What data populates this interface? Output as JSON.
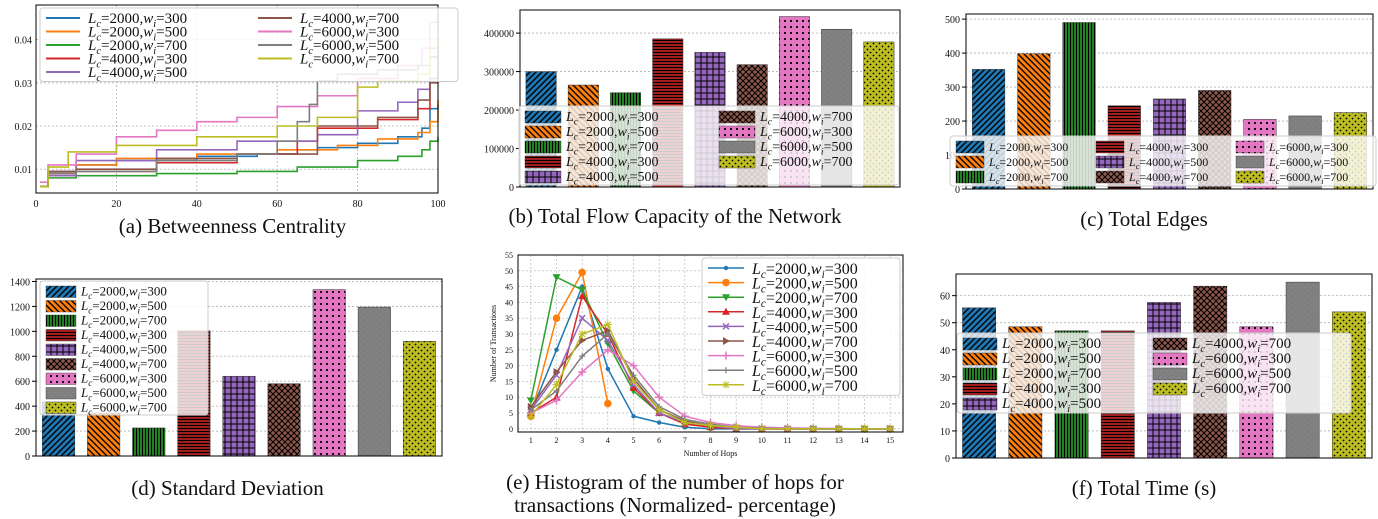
{
  "series_labels": [
    "Lc=2000,wi=300",
    "Lc=2000,wi=500",
    "Lc=2000,wi=700",
    "Lc=4000,wi=300",
    "Lc=4000,wi=500",
    "Lc=4000,wi=700",
    "Lc=6000,wi=300",
    "Lc=6000,wi=500",
    "Lc=6000,wi=700"
  ],
  "series_colors": [
    "#1f77b4",
    "#ff7f0e",
    "#2ca02c",
    "#d62728",
    "#9467bd",
    "#8c564b",
    "#e377c2",
    "#7f7f7f",
    "#bcbd22"
  ],
  "captions": {
    "a": "(a) Betweenness Centrality",
    "b": "(b) Total Flow Capacity of the Network",
    "c": "(c) Total Edges",
    "d": "(d) Standard Deviation",
    "e1": "(e) Histogram of the number of hops for",
    "e2": "transactions (Normalized- percentage)",
    "f": "(f) Total Time (s)"
  },
  "chart_data": [
    {
      "id": "a",
      "type": "line",
      "title": "(a) Betweenness Centrality",
      "xlim": [
        0,
        100
      ],
      "ylim": [
        0.0045,
        0.048
      ],
      "x_ticks": [
        0,
        20,
        40,
        60,
        80,
        100
      ],
      "y_ticks": [
        0.01,
        0.02,
        0.03,
        0.04
      ],
      "legend": "top-left, 2 columns",
      "grid": true,
      "series": [
        {
          "name": "Lc=2000,wi=300",
          "points": [
            [
              1,
              0.006
            ],
            [
              3,
              0.0095
            ],
            [
              10,
              0.011
            ],
            [
              20,
              0.012
            ],
            [
              40,
              0.013
            ],
            [
              55,
              0.0135
            ],
            [
              65,
              0.0145
            ],
            [
              70,
              0.015
            ],
            [
              80,
              0.016
            ],
            [
              90,
              0.0175
            ],
            [
              96,
              0.0195
            ],
            [
              98,
              0.024
            ],
            [
              100,
              0.025
            ]
          ]
        },
        {
          "name": "Lc=2000,wi=500",
          "points": [
            [
              1,
              0.006
            ],
            [
              3,
              0.009
            ],
            [
              10,
              0.011
            ],
            [
              20,
              0.0125
            ],
            [
              40,
              0.0135
            ],
            [
              60,
              0.0145
            ],
            [
              75,
              0.0155
            ],
            [
              85,
              0.017
            ],
            [
              95,
              0.0185
            ],
            [
              98,
              0.021
            ],
            [
              100,
              0.026
            ]
          ]
        },
        {
          "name": "Lc=2000,wi=700",
          "points": [
            [
              1,
              0.006
            ],
            [
              3,
              0.008
            ],
            [
              10,
              0.0085
            ],
            [
              30,
              0.009
            ],
            [
              50,
              0.0095
            ],
            [
              65,
              0.0105
            ],
            [
              80,
              0.012
            ],
            [
              90,
              0.013
            ],
            [
              96,
              0.0145
            ],
            [
              98,
              0.0165
            ],
            [
              100,
              0.0175
            ]
          ]
        },
        {
          "name": "Lc=4000,wi=300",
          "points": [
            [
              1,
              0.006
            ],
            [
              3,
              0.009
            ],
            [
              10,
              0.0095
            ],
            [
              30,
              0.0115
            ],
            [
              50,
              0.0135
            ],
            [
              65,
              0.0165
            ],
            [
              70,
              0.0195
            ],
            [
              85,
              0.0215
            ],
            [
              95,
              0.024
            ],
            [
              98,
              0.031
            ],
            [
              100,
              0.039
            ]
          ]
        },
        {
          "name": "Lc=4000,wi=500",
          "points": [
            [
              1,
              0.006
            ],
            [
              3,
              0.0085
            ],
            [
              10,
              0.012
            ],
            [
              30,
              0.0145
            ],
            [
              50,
              0.0165
            ],
            [
              70,
              0.018
            ],
            [
              80,
              0.0235
            ],
            [
              90,
              0.0255
            ],
            [
              95,
              0.0285
            ],
            [
              98,
              0.031
            ],
            [
              100,
              0.033
            ]
          ]
        },
        {
          "name": "Lc=4000,wi=700",
          "points": [
            [
              1,
              0.006
            ],
            [
              3,
              0.0095
            ],
            [
              10,
              0.01
            ],
            [
              30,
              0.0125
            ],
            [
              50,
              0.0135
            ],
            [
              70,
              0.02
            ],
            [
              85,
              0.022
            ],
            [
              95,
              0.026
            ],
            [
              98,
              0.03
            ],
            [
              100,
              0.033
            ]
          ]
        },
        {
          "name": "Lc=6000,wi=300",
          "points": [
            [
              1,
              0.007
            ],
            [
              3,
              0.011
            ],
            [
              10,
              0.0135
            ],
            [
              20,
              0.0175
            ],
            [
              30,
              0.019
            ],
            [
              40,
              0.021
            ],
            [
              50,
              0.022
            ],
            [
              60,
              0.0245
            ],
            [
              70,
              0.027
            ],
            [
              80,
              0.031
            ],
            [
              90,
              0.034
            ],
            [
              96,
              0.038
            ],
            [
              98,
              0.044
            ],
            [
              100,
              0.046
            ]
          ]
        },
        {
          "name": "Lc=6000,wi=500",
          "points": [
            [
              1,
              0.006
            ],
            [
              3,
              0.009
            ],
            [
              10,
              0.0095
            ],
            [
              30,
              0.012
            ],
            [
              50,
              0.0135
            ],
            [
              60,
              0.0165
            ],
            [
              65,
              0.021
            ],
            [
              68,
              0.025
            ],
            [
              70,
              0.0305
            ],
            [
              75,
              0.032
            ],
            [
              85,
              0.033
            ],
            [
              95,
              0.034
            ],
            [
              98,
              0.036
            ],
            [
              100,
              0.047
            ]
          ]
        },
        {
          "name": "Lc=6000,wi=700",
          "points": [
            [
              1,
              0.006
            ],
            [
              3,
              0.0105
            ],
            [
              8,
              0.014
            ],
            [
              20,
              0.0155
            ],
            [
              40,
              0.0175
            ],
            [
              60,
              0.02
            ],
            [
              70,
              0.022
            ],
            [
              80,
              0.029
            ],
            [
              85,
              0.0305
            ],
            [
              95,
              0.032
            ],
            [
              98,
              0.038
            ],
            [
              100,
              0.042
            ]
          ]
        }
      ]
    },
    {
      "id": "b",
      "type": "bar",
      "title": "(b) Total Flow Capacity of the Network",
      "ylim": [
        0,
        460000
      ],
      "y_ticks": [
        0,
        100000,
        200000,
        300000,
        400000
      ],
      "legend": "lower-center, 2 columns",
      "values": [
        300000,
        265000,
        245000,
        385000,
        350000,
        318000,
        443000,
        410000,
        377000
      ]
    },
    {
      "id": "c",
      "type": "bar",
      "title": "(c) Total Edges",
      "ylim": [
        0,
        515
      ],
      "y_ticks": [
        0,
        100,
        200,
        300,
        400,
        500
      ],
      "legend": "lower, 3 columns",
      "values": [
        352,
        398,
        490,
        245,
        265,
        290,
        205,
        215,
        225
      ]
    },
    {
      "id": "d",
      "type": "bar",
      "title": "(d) Standard Deviation",
      "ylim": [
        0,
        1420
      ],
      "y_ticks": [
        0,
        200,
        400,
        600,
        800,
        1000,
        1200,
        1400
      ],
      "legend": "upper-left, 1 column",
      "values": [
        435,
        345,
        225,
        1005,
        640,
        580,
        1335,
        1195,
        920
      ]
    },
    {
      "id": "e",
      "type": "line",
      "title": "(e) Histogram of the number of hops for transactions (Normalized- percentage)",
      "xlabel": "Number of Hops",
      "ylabel": "Number of Transactions",
      "xlim": [
        0.5,
        15.5
      ],
      "ylim": [
        -1,
        55
      ],
      "x_ticks": [
        1,
        2,
        3,
        4,
        5,
        6,
        7,
        8,
        9,
        10,
        11,
        12,
        13,
        14,
        15
      ],
      "y_ticks": [
        0,
        5,
        10,
        15,
        20,
        25,
        30,
        35,
        40,
        45,
        50,
        55
      ],
      "legend": "right, 1 column",
      "series": [
        {
          "name": "Lc=2000,wi=300",
          "marker": "circle",
          "values": [
            5,
            25,
            45,
            19,
            4,
            2,
            0.5,
            0,
            0,
            0,
            0,
            0,
            0,
            0,
            0
          ]
        },
        {
          "name": "Lc=2000,wi=500",
          "marker": "big-circle",
          "values": [
            4,
            35,
            49.5,
            8,
            null,
            null,
            null,
            null,
            null,
            null,
            null,
            null,
            null,
            null,
            null
          ]
        },
        {
          "name": "Lc=2000,wi=700",
          "marker": "triangle-down",
          "values": [
            9,
            48,
            44,
            27,
            12,
            5,
            2,
            0.5,
            0,
            0,
            0,
            0,
            0,
            0,
            0
          ]
        },
        {
          "name": "Lc=4000,wi=300",
          "marker": "triangle-up",
          "values": [
            5,
            10,
            42,
            30,
            13,
            5,
            1.5,
            0.5,
            0,
            0,
            0,
            0,
            0,
            0,
            0
          ]
        },
        {
          "name": "Lc=4000,wi=500",
          "marker": "x",
          "values": [
            6,
            17,
            35,
            28,
            14,
            5,
            2,
            1,
            0,
            0,
            0,
            0,
            0,
            0,
            0
          ]
        },
        {
          "name": "Lc=4000,wi=700",
          "marker": "triangle-right",
          "values": [
            7,
            18,
            28,
            31,
            16,
            6,
            2.5,
            1,
            0.5,
            0,
            0,
            0,
            0,
            0,
            0
          ]
        },
        {
          "name": "Lc=6000,wi=300",
          "marker": "plus",
          "values": [
            5,
            9,
            18,
            25,
            20,
            10,
            4,
            2,
            1,
            0.5,
            0.3,
            0.2,
            0.1,
            0,
            0
          ]
        },
        {
          "name": "Lc=6000,wi=500",
          "marker": "small-plus",
          "values": [
            6,
            12,
            23,
            30,
            17,
            7,
            3,
            1.5,
            0.5,
            0.2,
            0,
            0,
            0,
            0,
            0
          ]
        },
        {
          "name": "Lc=6000,wi=700",
          "marker": "star",
          "values": [
            4,
            14,
            30,
            33,
            15,
            6,
            2,
            1,
            0.5,
            0,
            0,
            0,
            0,
            0,
            0
          ]
        }
      ]
    },
    {
      "id": "f",
      "type": "bar",
      "title": "(f) Total Time (s)",
      "ylim": [
        0,
        68
      ],
      "y_ticks": [
        0,
        10,
        20,
        30,
        40,
        50,
        60
      ],
      "legend": "lower, 2 columns",
      "values": [
        55.5,
        48.5,
        47,
        47,
        57.5,
        63.5,
        48.5,
        65,
        54
      ]
    }
  ]
}
